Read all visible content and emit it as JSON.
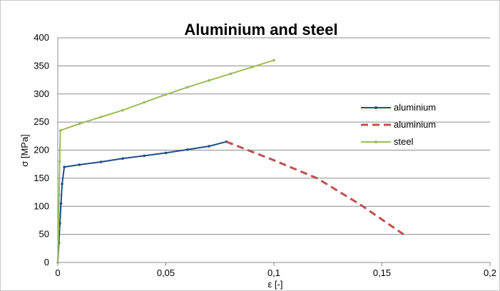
{
  "chart_data": {
    "type": "line",
    "title": "Aluminium and steel",
    "xlabel": "ε [-]",
    "ylabel": "σ [MPa]",
    "xlim": [
      0,
      0.2
    ],
    "ylim": [
      0,
      400
    ],
    "x_ticks": [
      0,
      0.05,
      0.1,
      0.15,
      0.2
    ],
    "x_tick_labels": [
      "0",
      "0,05",
      "0,1",
      "0,15",
      "0,2"
    ],
    "y_ticks": [
      0,
      50,
      100,
      150,
      200,
      250,
      300,
      350,
      400
    ],
    "y_tick_labels": [
      "0",
      "50",
      "100",
      "150",
      "200",
      "250",
      "300",
      "350",
      "400"
    ],
    "grid": "horizontal",
    "legend_position": "right",
    "series": [
      {
        "name": "aluminium",
        "color": "#1f4e8c",
        "style": "solid-markers",
        "x": [
          0,
          0.0005,
          0.001,
          0.0015,
          0.002,
          0.003,
          0.01,
          0.02,
          0.03,
          0.04,
          0.05,
          0.06,
          0.07,
          0.078
        ],
        "y": [
          0,
          35,
          70,
          105,
          140,
          170,
          174,
          179,
          185,
          190,
          195,
          201,
          207,
          215
        ]
      },
      {
        "name": "aluminium",
        "color": "#c0504d",
        "style": "dashed",
        "x": [
          0.078,
          0.1,
          0.12,
          0.14,
          0.16
        ],
        "y": [
          215,
          182,
          150,
          103,
          50
        ]
      },
      {
        "name": "steel",
        "color": "#9bbb59",
        "style": "solid-markers",
        "x": [
          0,
          0.0003,
          0.0006,
          0.0009,
          0.0012,
          0.01,
          0.02,
          0.03,
          0.04,
          0.05,
          0.06,
          0.07,
          0.08,
          0.09,
          0.1
        ],
        "y": [
          0,
          60,
          120,
          180,
          235,
          247,
          259,
          271,
          285,
          299,
          312,
          324,
          336,
          348,
          360
        ]
      }
    ]
  }
}
